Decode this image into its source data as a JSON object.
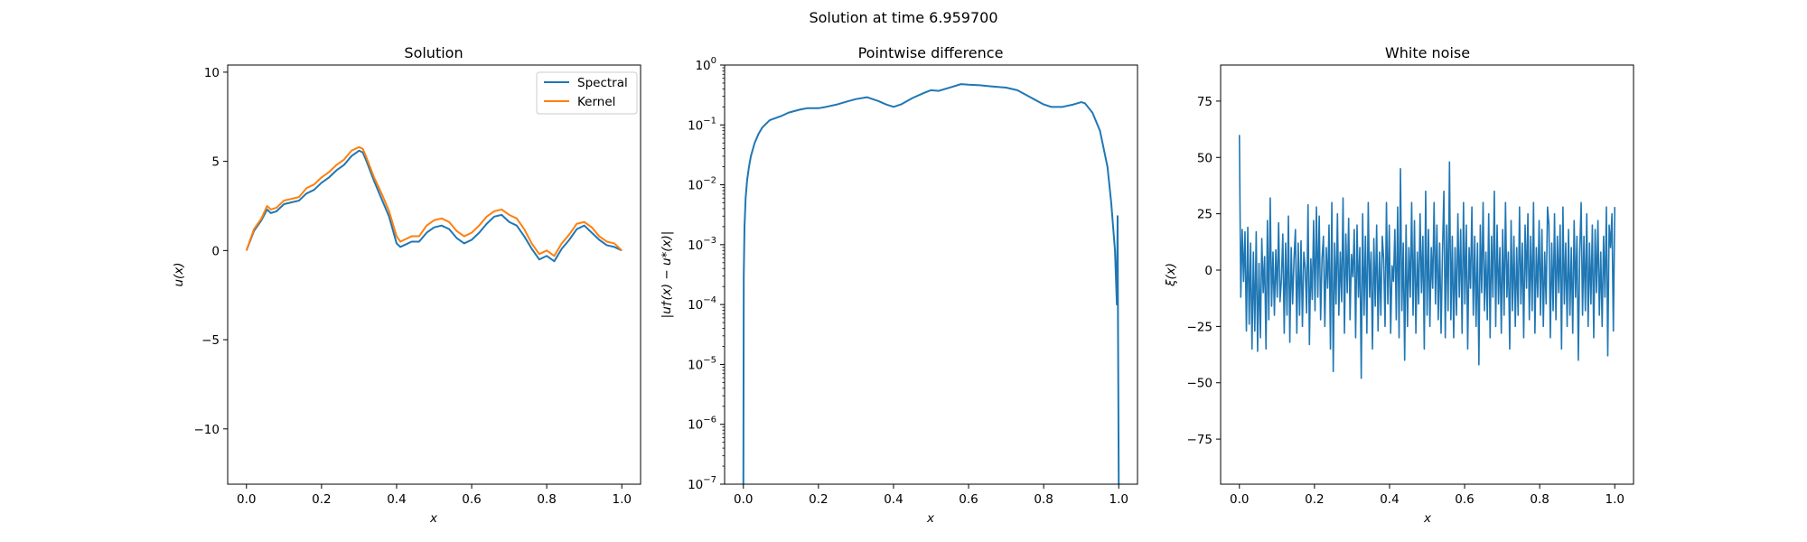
{
  "figure": {
    "suptitle": "Solution at time 6.959700"
  },
  "colors": {
    "spectral": "#1f77b4",
    "kernel": "#ff7f0e",
    "noise": "#1f77b4",
    "difference": "#1f77b4"
  },
  "chart_data": [
    {
      "type": "line",
      "title": "Solution",
      "xlabel": "x",
      "ylabel": "u(x)",
      "xlim": [
        -0.05,
        1.05
      ],
      "ylim": [
        -13.1,
        10.4
      ],
      "xticks": [
        0.0,
        0.2,
        0.4,
        0.6,
        0.8,
        1.0
      ],
      "xtick_labels": [
        "0.0",
        "0.2",
        "0.4",
        "0.6",
        "0.8",
        "1.0"
      ],
      "yticks": [
        10,
        5,
        0,
        -5,
        -10
      ],
      "ytick_labels": [
        "10",
        "5",
        "0",
        "−5",
        "−10"
      ],
      "legend": {
        "placement": "upper right",
        "entries": [
          "Spectral",
          "Kernel"
        ]
      },
      "x": [
        0.0,
        0.02,
        0.04,
        0.055,
        0.065,
        0.08,
        0.1,
        0.12,
        0.14,
        0.16,
        0.18,
        0.2,
        0.22,
        0.24,
        0.26,
        0.28,
        0.3,
        0.31,
        0.32,
        0.34,
        0.36,
        0.38,
        0.4,
        0.41,
        0.42,
        0.44,
        0.46,
        0.48,
        0.5,
        0.52,
        0.54,
        0.56,
        0.58,
        0.6,
        0.62,
        0.64,
        0.66,
        0.68,
        0.7,
        0.72,
        0.74,
        0.76,
        0.78,
        0.8,
        0.82,
        0.84,
        0.86,
        0.88,
        0.9,
        0.92,
        0.94,
        0.96,
        0.98,
        1.0
      ],
      "series": [
        {
          "name": "Spectral",
          "color_key": "spectral",
          "values": [
            0.0,
            1.1,
            1.7,
            2.3,
            2.1,
            2.2,
            2.6,
            2.7,
            2.8,
            3.2,
            3.4,
            3.8,
            4.1,
            4.5,
            4.8,
            5.3,
            5.6,
            5.5,
            5.0,
            3.9,
            2.9,
            1.9,
            0.4,
            0.2,
            0.3,
            0.5,
            0.5,
            1.0,
            1.3,
            1.4,
            1.2,
            0.7,
            0.4,
            0.6,
            1.0,
            1.5,
            1.9,
            2.0,
            1.6,
            1.4,
            0.8,
            0.1,
            -0.5,
            -0.3,
            -0.6,
            0.1,
            0.6,
            1.2,
            1.4,
            1.0,
            0.6,
            0.3,
            0.2,
            0.0
          ]
        },
        {
          "name": "Kernel",
          "color_key": "kernel",
          "values": [
            0.0,
            1.2,
            1.8,
            2.5,
            2.3,
            2.4,
            2.8,
            2.9,
            3.0,
            3.5,
            3.7,
            4.1,
            4.4,
            4.8,
            5.1,
            5.6,
            5.8,
            5.7,
            5.2,
            4.1,
            3.2,
            2.2,
            0.8,
            0.5,
            0.6,
            0.8,
            0.8,
            1.4,
            1.7,
            1.8,
            1.6,
            1.1,
            0.8,
            1.0,
            1.4,
            1.9,
            2.2,
            2.3,
            2.0,
            1.8,
            1.2,
            0.4,
            -0.2,
            0.0,
            -0.3,
            0.4,
            0.9,
            1.5,
            1.6,
            1.3,
            0.8,
            0.5,
            0.4,
            0.0
          ]
        }
      ]
    },
    {
      "type": "line",
      "title": "Pointwise difference",
      "xlabel": "x",
      "ylabel": "|u†(x) − u*(x)|",
      "yscale": "log",
      "xlim": [
        -0.05,
        1.05
      ],
      "ylim": [
        1e-07,
        1
      ],
      "xticks": [
        0.0,
        0.2,
        0.4,
        0.6,
        0.8,
        1.0
      ],
      "xtick_labels": [
        "0.0",
        "0.2",
        "0.4",
        "0.6",
        "0.8",
        "1.0"
      ],
      "ytick_exponents": [
        0,
        -1,
        -2,
        -3,
        -4,
        -5,
        -6,
        -7
      ],
      "ytick_base": "10",
      "x": [
        0.0,
        0.001,
        0.003,
        0.006,
        0.01,
        0.015,
        0.02,
        0.03,
        0.04,
        0.05,
        0.07,
        0.1,
        0.12,
        0.15,
        0.17,
        0.2,
        0.22,
        0.25,
        0.28,
        0.3,
        0.33,
        0.36,
        0.38,
        0.4,
        0.42,
        0.45,
        0.48,
        0.5,
        0.52,
        0.55,
        0.58,
        0.6,
        0.63,
        0.66,
        0.7,
        0.73,
        0.76,
        0.8,
        0.82,
        0.85,
        0.88,
        0.9,
        0.91,
        0.93,
        0.95,
        0.97,
        0.98,
        0.99,
        0.995,
        0.997,
        0.998,
        1.0
      ],
      "series": [
        {
          "name": "",
          "color_key": "difference",
          "values": [
            1e-07,
            0.0003,
            0.002,
            0.006,
            0.012,
            0.02,
            0.03,
            0.05,
            0.07,
            0.09,
            0.12,
            0.14,
            0.16,
            0.18,
            0.19,
            0.19,
            0.2,
            0.22,
            0.25,
            0.27,
            0.29,
            0.25,
            0.22,
            0.2,
            0.22,
            0.28,
            0.34,
            0.38,
            0.37,
            0.42,
            0.48,
            0.47,
            0.46,
            0.44,
            0.42,
            0.38,
            0.3,
            0.22,
            0.2,
            0.2,
            0.22,
            0.24,
            0.23,
            0.16,
            0.08,
            0.02,
            0.005,
            0.0008,
            0.0001,
            0.003,
            5e-05,
            1e-07
          ]
        }
      ]
    },
    {
      "type": "line",
      "title": "White noise",
      "xlabel": "x",
      "ylabel": "ξ(x)",
      "xlim": [
        -0.05,
        1.05
      ],
      "ylim": [
        -95,
        91
      ],
      "xticks": [
        0.0,
        0.2,
        0.4,
        0.6,
        0.8,
        1.0
      ],
      "xtick_labels": [
        "0.0",
        "0.2",
        "0.4",
        "0.6",
        "0.8",
        "1.0"
      ],
      "yticks": [
        75,
        50,
        25,
        0,
        -25,
        -50,
        -75
      ],
      "ytick_labels": [
        "75",
        "50",
        "25",
        "0",
        "−25",
        "−50",
        "−75"
      ],
      "x_start": 0.0,
      "x_end": 1.0,
      "series": [
        {
          "name": "",
          "color_key": "noise",
          "values": [
            60,
            -12,
            18,
            -5,
            17,
            -27,
            19,
            -24,
            12,
            -35,
            8,
            -27,
            17,
            -36,
            3,
            -30,
            14,
            -10,
            6,
            -35,
            22,
            -22,
            32,
            -16,
            8,
            -20,
            9,
            -12,
            21,
            -14,
            -4,
            16,
            -28,
            12,
            -20,
            24,
            -32,
            10,
            -15,
            5,
            18,
            -28,
            12,
            -20,
            13,
            -25,
            8,
            1,
            -19,
            29,
            -33,
            5,
            -13,
            22,
            -18,
            28,
            -12,
            24,
            -22,
            5,
            15,
            -25,
            10,
            -8,
            20,
            -35,
            30,
            -45,
            12,
            -15,
            25,
            -20,
            8,
            -14,
            32,
            -28,
            16,
            -10,
            23,
            -22,
            7,
            -3,
            18,
            -30,
            20,
            -12,
            10,
            -48,
            25,
            -20,
            15,
            -28,
            30,
            -12,
            8,
            -35,
            14,
            -16,
            20,
            -27,
            8,
            -20,
            15,
            5,
            -25,
            30,
            -15,
            20,
            -28,
            2,
            -5,
            18,
            -22,
            28,
            -30,
            45,
            -18,
            12,
            -40,
            20,
            -25,
            10,
            -12,
            30,
            -20,
            22,
            -28,
            8,
            -15,
            25,
            -10,
            15,
            -35,
            35,
            -20,
            18,
            -25,
            10,
            -8,
            30,
            -15,
            20,
            -22,
            12,
            -28,
            8,
            35,
            -30,
            20,
            -18,
            48,
            -22,
            15,
            -30,
            10,
            -20,
            25,
            -12,
            18,
            -28,
            30,
            -15,
            20,
            -35,
            10,
            -8,
            28,
            -20,
            15,
            -25,
            12,
            -42,
            20,
            -10,
            30,
            -18,
            8,
            -22,
            25,
            -30,
            15,
            -12,
            35,
            -25,
            20,
            -15,
            10,
            -28,
            18,
            -20,
            30,
            -12,
            8,
            -35,
            22,
            -18,
            15,
            -25,
            10,
            -20,
            28,
            -15,
            12,
            -30,
            20,
            -8,
            25,
            -22,
            15,
            -18,
            30,
            -28,
            10,
            -12,
            22,
            -20,
            18,
            -25,
            8,
            -15,
            28,
            20,
            -30,
            12,
            -18,
            25,
            -22,
            15,
            -10,
            20,
            -35,
            28,
            -15,
            12,
            -25,
            18,
            -20,
            10,
            -28,
            22,
            -12,
            15,
            -40,
            8,
            30,
            -20,
            15,
            -18,
            25,
            -25,
            12,
            -15,
            20,
            -30,
            18,
            -10,
            22,
            -20,
            8,
            -25,
            15,
            -12,
            28,
            -38,
            20,
            10,
            25,
            -27,
            28
          ]
        }
      ]
    }
  ]
}
